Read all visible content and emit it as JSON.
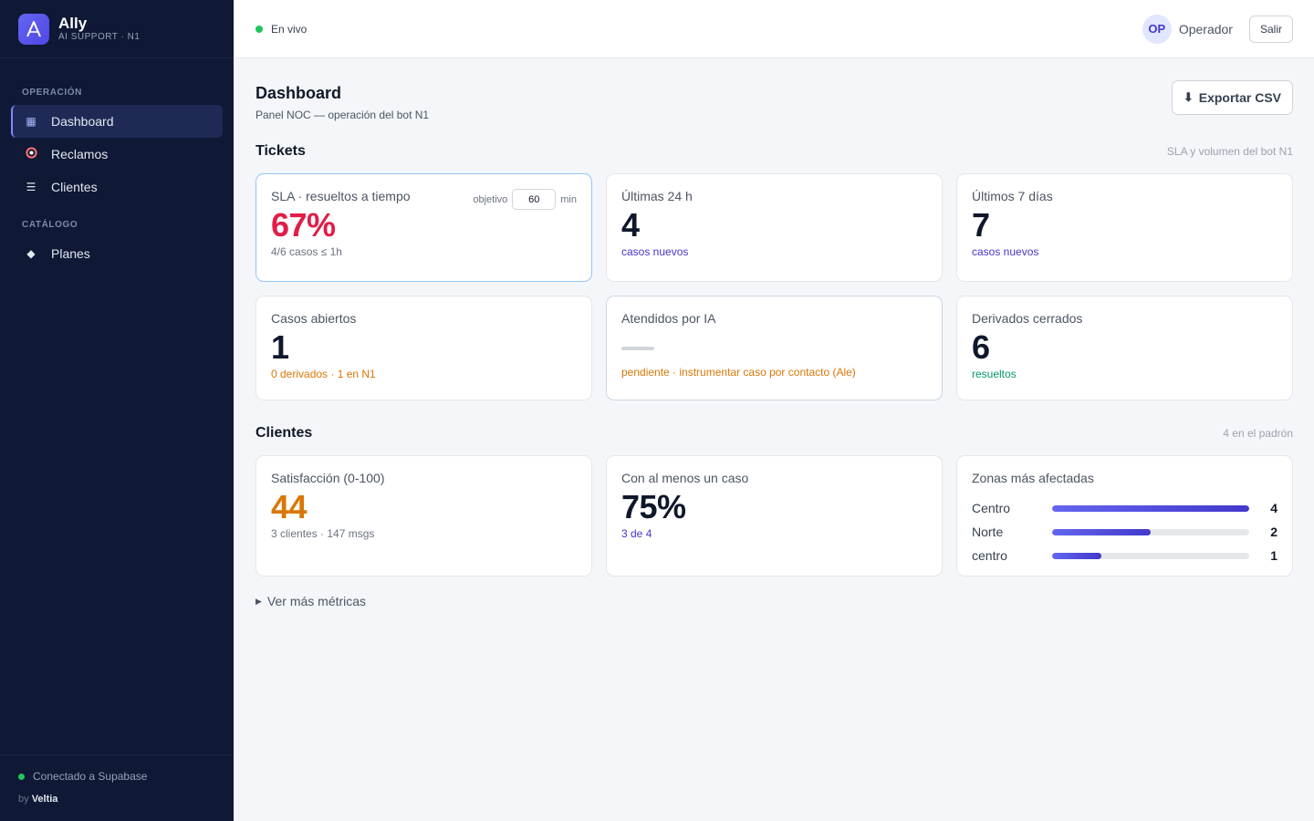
{
  "brand": {
    "name": "Ally",
    "subtitle": "AI SUPPORT · N1",
    "logo_letter": "A",
    "accent": "#4f46e5"
  },
  "sidebar": {
    "sections": [
      {
        "title": "OPERACIÓN",
        "items": [
          {
            "label": "Dashboard",
            "icon": "grid-icon",
            "active": true
          },
          {
            "label": "Reclamos",
            "icon": "lifebuoy-icon"
          },
          {
            "label": "Clientes",
            "icon": "list-icon"
          }
        ]
      },
      {
        "title": "CATÁLOGO",
        "items": [
          {
            "label": "Planes",
            "icon": "diamond-icon"
          }
        ]
      }
    ],
    "footer": {
      "status": "Conectado a Supabase",
      "by": "by",
      "vendor": "Veltia",
      "status_color": "#22c55e"
    }
  },
  "topbar": {
    "live_label": "En vivo",
    "user_initials": "OP",
    "user_name": "Operador",
    "logout_label": "Salir"
  },
  "page": {
    "title": "Dashboard",
    "subtitle": "Panel NOC — operación del bot N1",
    "export_label": "Exportar CSV",
    "export_icon": "download-icon"
  },
  "tickets": {
    "title": "Tickets",
    "meta": "SLA y volumen del bot N1",
    "cards": {
      "sla": {
        "label": "SLA · resueltos a tiempo",
        "target_prefix": "objetivo",
        "target_value": "60",
        "target_unit": "min",
        "value": "67%",
        "foot": "4/6 casos ≤ 1h",
        "value_color": "#e11d48"
      },
      "last24": {
        "label": "Últimas 24 h",
        "value": "4",
        "foot": "casos nuevos"
      },
      "last7": {
        "label": "Últimos 7 días",
        "value": "7",
        "foot": "casos nuevos"
      },
      "open": {
        "label": "Casos abiertos",
        "value": "1",
        "foot": "0 derivados · 1 en N1"
      },
      "ai": {
        "label": "Atendidos por IA",
        "foot": "pendiente · instrumentar caso por contacto (Ale)"
      },
      "closed": {
        "label": "Derivados cerrados",
        "value": "6",
        "foot": "resueltos"
      }
    }
  },
  "clients": {
    "title": "Clientes",
    "meta": "4 en el padrón",
    "cards": {
      "satisfaction": {
        "label": "Satisfacción (0-100)",
        "value": "44",
        "foot": "3 clientes · 147 msgs",
        "value_color": "#d97706"
      },
      "with_case": {
        "label": "Con al menos un caso",
        "value": "75%",
        "foot": "3 de 4"
      },
      "zones": {
        "label": "Zonas más afectadas",
        "rows": [
          {
            "name": "Centro",
            "count": "4",
            "fraction": 1.0
          },
          {
            "name": "Norte",
            "count": "2",
            "fraction": 0.5
          },
          {
            "name": "centro",
            "count": "1",
            "fraction": 0.25
          }
        ]
      }
    }
  },
  "more_metrics": "Ver más métricas"
}
